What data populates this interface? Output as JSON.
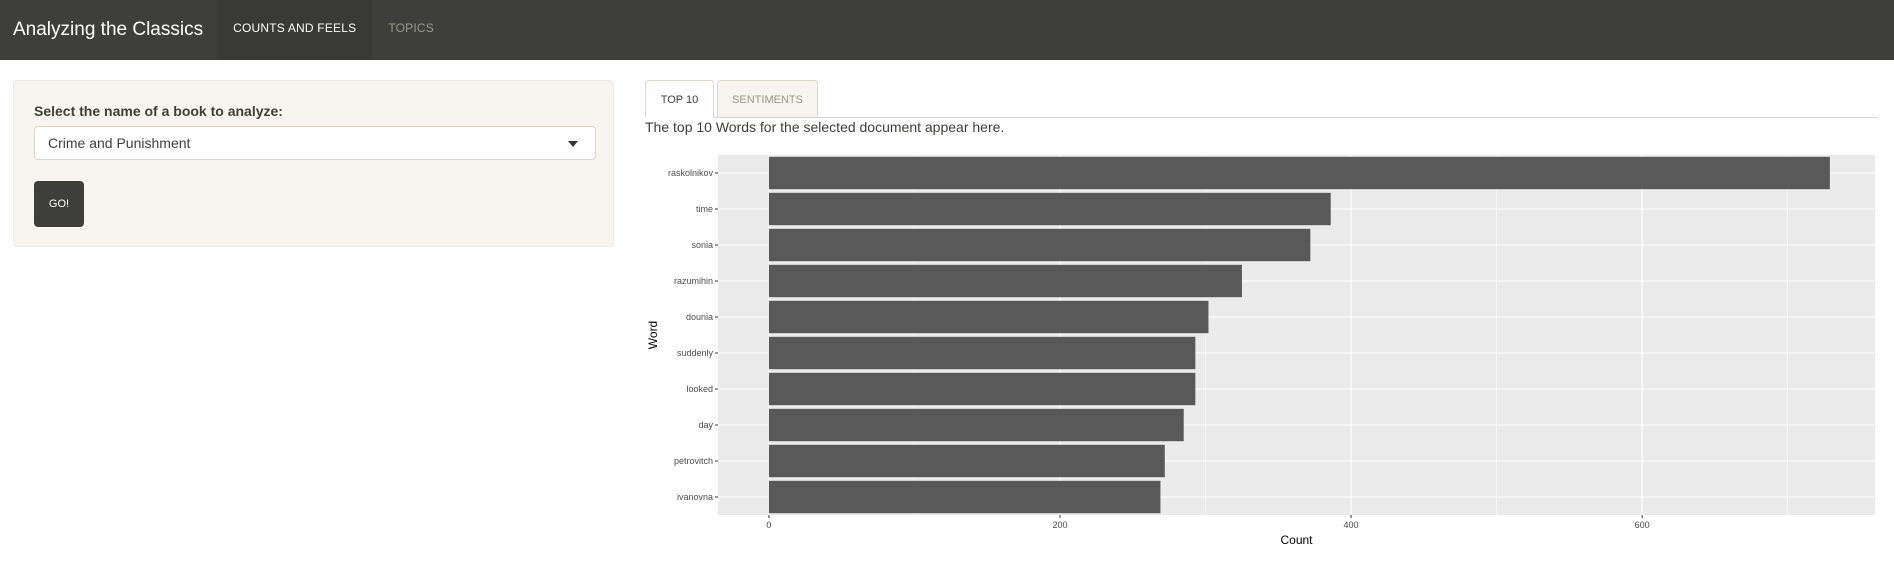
{
  "navbar": {
    "brand": "Analyzing the Classics",
    "tabs": [
      {
        "label": "COUNTS AND FEELS"
      },
      {
        "label": "TOPICS"
      }
    ]
  },
  "sidebar": {
    "select_label": "Select the name of a book to analyze:",
    "selected_book": "Crime and Punishment",
    "go_button": "GO!"
  },
  "main": {
    "tabs": [
      {
        "label": "TOP 10"
      },
      {
        "label": "SENTIMENTS"
      }
    ],
    "description": "The top 10 Words for the selected document appear here."
  },
  "colors": {
    "navbar_bg": "#3e3f3a",
    "panel_bg": "#f8f5f0",
    "bar_fill": "#595959",
    "plot_bg": "#ebebeb",
    "grid": "#ffffff"
  },
  "chart_data": {
    "type": "bar",
    "orientation": "horizontal",
    "categories": [
      "raskolnikov",
      "time",
      "sonia",
      "razumihin",
      "dounia",
      "suddenly",
      "looked",
      "day",
      "petrovitch",
      "ivanovna"
    ],
    "values": [
      729,
      386,
      372,
      325,
      302,
      293,
      293,
      285,
      272,
      269
    ],
    "xlabel": "Count",
    "ylabel": "Word",
    "xlim": [
      -35,
      760
    ],
    "x_ticks": [
      0,
      200,
      400,
      600
    ],
    "grid": true
  }
}
